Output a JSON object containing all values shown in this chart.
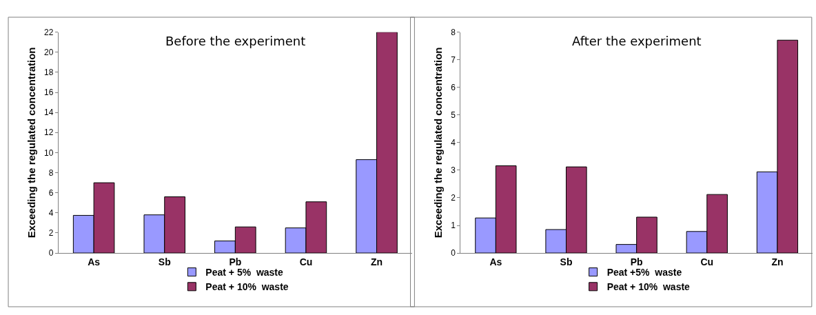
{
  "chart_data": [
    {
      "type": "bar",
      "title": "Before the experiment",
      "ylabel": "Exceeding the regulated concentration",
      "categories": [
        "As",
        "Sb",
        "Pb",
        "Cu",
        "Zn"
      ],
      "series": [
        {
          "name": "Peat + 5%  waste",
          "color": "#9999ff",
          "values": [
            3.75,
            3.8,
            1.2,
            2.5,
            9.3
          ]
        },
        {
          "name": "Peat + 10%  waste",
          "color": "#993366",
          "values": [
            7.0,
            5.6,
            2.6,
            5.1,
            22.0
          ]
        }
      ],
      "ylim": [
        0,
        22
      ],
      "yticks": [
        0,
        2,
        4,
        6,
        8,
        10,
        12,
        14,
        16,
        18,
        20,
        22
      ],
      "grid": false,
      "legend": "bottom"
    },
    {
      "type": "bar",
      "title": "After the experiment",
      "ylabel": "Exceeding the regulated concentration",
      "categories": [
        "As",
        "Sb",
        "Pb",
        "Cu",
        "Zn"
      ],
      "series": [
        {
          "name": "Peat +5%  waste",
          "color": "#9999ff",
          "values": [
            1.27,
            0.85,
            0.31,
            0.78,
            2.94
          ]
        },
        {
          "name": "Peat + 10%  waste",
          "color": "#993366",
          "values": [
            3.16,
            3.12,
            1.3,
            2.12,
            7.71
          ]
        }
      ],
      "ylim": [
        0,
        8
      ],
      "yticks": [
        0,
        1,
        2,
        3,
        4,
        5,
        6,
        7,
        8
      ],
      "grid": false,
      "legend": "bottom"
    }
  ]
}
